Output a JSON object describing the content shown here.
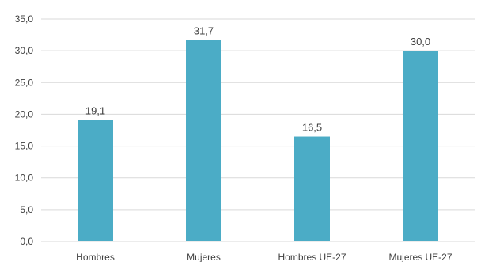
{
  "chart_data": {
    "type": "bar",
    "title": "",
    "xlabel": "",
    "ylabel": "",
    "categories": [
      "Hombres",
      "Mujeres",
      "Hombres UE-27",
      "Mujeres UE-27"
    ],
    "values": [
      19.1,
      31.7,
      16.5,
      30.0
    ],
    "value_labels": [
      "19,1",
      "31,7",
      "16,5",
      "30,0"
    ],
    "ylim": [
      0,
      35
    ],
    "yticks": [
      0,
      5,
      10,
      15,
      20,
      25,
      30,
      35
    ],
    "ytick_labels": [
      "0,0",
      "5,0",
      "10,0",
      "15,0",
      "20,0",
      "25,0",
      "30,0",
      "35,0"
    ],
    "grid": true,
    "legend": "none",
    "bar_color": "#4BACC6",
    "gridline_color": "#D9D9D9"
  }
}
